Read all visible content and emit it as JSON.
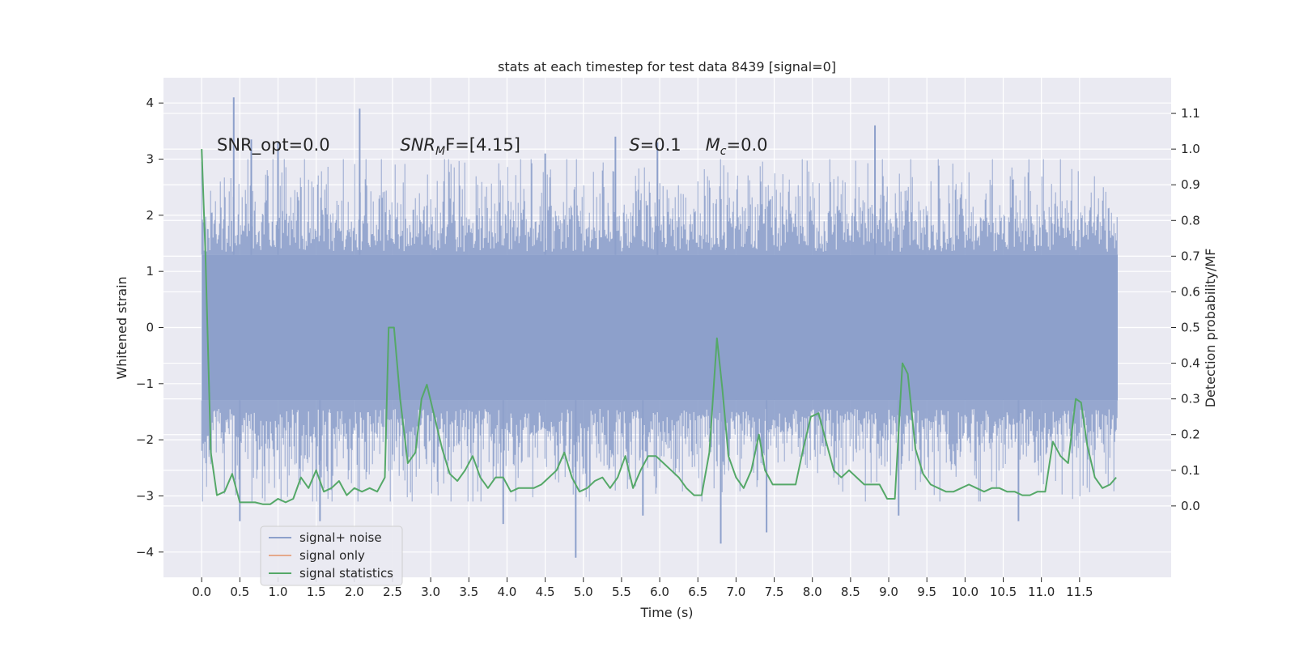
{
  "chart_data": {
    "type": "line",
    "title": "stats at each timestep for test data 8439 [signal=0]",
    "xlabel": "Time (s)",
    "ylabel_left": "Whitened strain",
    "ylabel_right": "Detection probability/MF",
    "xlim": [
      -0.5,
      12.7
    ],
    "ylim_left": [
      -4.45,
      4.45
    ],
    "ylim_right": [
      -0.2,
      1.2
    ],
    "x_ticks": [
      0.0,
      0.5,
      1.0,
      1.5,
      2.0,
      2.5,
      3.0,
      3.5,
      4.0,
      4.5,
      5.0,
      5.5,
      6.0,
      6.5,
      7.0,
      7.5,
      8.0,
      8.5,
      9.0,
      9.5,
      10.0,
      10.5,
      11.0,
      11.5
    ],
    "x_tick_labels": [
      "0.0",
      "0.5",
      "1.0",
      "1.5",
      "2.0",
      "2.5",
      "3.0",
      "3.5",
      "4.0",
      "4.5",
      "5.0",
      "5.5",
      "6.0",
      "6.5",
      "7.0",
      "7.5",
      "8.0",
      "8.5",
      "9.0",
      "9.5",
      "10.0",
      "10.5",
      "11.0",
      "11.5"
    ],
    "y_left_ticks": [
      4,
      3,
      2,
      1,
      0,
      -1,
      -2,
      -3,
      -4
    ],
    "y_left_tick_labels": [
      "4",
      "3",
      "2",
      "1",
      "0",
      "−1",
      "−2",
      "−3",
      "−4"
    ],
    "y_right_ticks": [
      1.1,
      1.0,
      0.9,
      0.8,
      0.7,
      0.6,
      0.5,
      0.4,
      0.3,
      0.2,
      0.1,
      0.0
    ],
    "y_right_tick_labels": [
      "1.1",
      "1.0",
      "0.9",
      "0.8",
      "0.7",
      "0.6",
      "0.5",
      "0.4",
      "0.3",
      "0.2",
      "0.1",
      "0.0"
    ],
    "grid": true,
    "legend_position": "lower-left",
    "series": [
      {
        "name": "signal+ noise",
        "axis": "left",
        "kind": "noise-band",
        "color": "#8da0cb",
        "x_range": [
          0.0,
          12.0
        ],
        "core_range": [
          -1.3,
          1.3
        ],
        "typical_extent": [
          -2.6,
          2.4
        ],
        "peaks": [
          {
            "x": 0.42,
            "y": 4.1
          },
          {
            "x": 0.65,
            "y": 3.35
          },
          {
            "x": 1.0,
            "y": 3.3
          },
          {
            "x": 2.07,
            "y": 3.9
          },
          {
            "x": 4.5,
            "y": 3.1
          },
          {
            "x": 5.42,
            "y": 3.4
          },
          {
            "x": 5.97,
            "y": 3.3
          },
          {
            "x": 8.82,
            "y": 3.6
          },
          {
            "x": 0.5,
            "y": -3.45
          },
          {
            "x": 1.55,
            "y": -3.45
          },
          {
            "x": 3.95,
            "y": -3.5
          },
          {
            "x": 4.9,
            "y": -4.1
          },
          {
            "x": 5.78,
            "y": -3.35
          },
          {
            "x": 6.8,
            "y": -3.85
          },
          {
            "x": 7.4,
            "y": -3.65
          },
          {
            "x": 9.13,
            "y": -3.35
          },
          {
            "x": 10.7,
            "y": -3.45
          }
        ]
      },
      {
        "name": "signal only",
        "axis": "left",
        "color": "#e5a98c",
        "x": [],
        "y": []
      },
      {
        "name": "signal statistics",
        "axis": "right",
        "color": "#55a868",
        "x": [
          0.0,
          0.05,
          0.12,
          0.2,
          0.3,
          0.4,
          0.5,
          0.6,
          0.7,
          0.8,
          0.9,
          1.0,
          1.1,
          1.2,
          1.3,
          1.4,
          1.5,
          1.6,
          1.7,
          1.8,
          1.9,
          2.0,
          2.1,
          2.2,
          2.3,
          2.4,
          2.45,
          2.52,
          2.6,
          2.7,
          2.8,
          2.88,
          2.95,
          3.05,
          3.15,
          3.25,
          3.35,
          3.45,
          3.55,
          3.65,
          3.75,
          3.85,
          3.95,
          4.05,
          4.15,
          4.25,
          4.35,
          4.45,
          4.55,
          4.65,
          4.75,
          4.85,
          4.95,
          5.05,
          5.15,
          5.25,
          5.35,
          5.45,
          5.55,
          5.65,
          5.75,
          5.85,
          5.95,
          6.05,
          6.15,
          6.25,
          6.35,
          6.45,
          6.55,
          6.65,
          6.75,
          6.82,
          6.9,
          7.0,
          7.1,
          7.2,
          7.3,
          7.38,
          7.48,
          7.58,
          7.68,
          7.78,
          7.88,
          7.98,
          8.08,
          8.18,
          8.28,
          8.38,
          8.48,
          8.58,
          8.68,
          8.78,
          8.88,
          8.98,
          9.08,
          9.18,
          9.25,
          9.35,
          9.45,
          9.55,
          9.65,
          9.75,
          9.85,
          9.95,
          10.05,
          10.15,
          10.25,
          10.35,
          10.45,
          10.55,
          10.65,
          10.75,
          10.85,
          10.95,
          11.05,
          11.15,
          11.25,
          11.35,
          11.45,
          11.52,
          11.6,
          11.7,
          11.8,
          11.9,
          11.98
        ],
        "y": [
          1.0,
          0.7,
          0.15,
          0.03,
          0.04,
          0.09,
          0.01,
          0.01,
          0.01,
          0.005,
          0.005,
          0.02,
          0.01,
          0.02,
          0.08,
          0.05,
          0.1,
          0.04,
          0.05,
          0.07,
          0.03,
          0.05,
          0.04,
          0.05,
          0.04,
          0.08,
          0.5,
          0.5,
          0.3,
          0.12,
          0.15,
          0.3,
          0.34,
          0.25,
          0.16,
          0.09,
          0.07,
          0.1,
          0.14,
          0.08,
          0.05,
          0.08,
          0.08,
          0.04,
          0.05,
          0.05,
          0.05,
          0.06,
          0.08,
          0.1,
          0.15,
          0.08,
          0.04,
          0.05,
          0.07,
          0.08,
          0.05,
          0.08,
          0.14,
          0.05,
          0.1,
          0.14,
          0.14,
          0.12,
          0.1,
          0.08,
          0.05,
          0.03,
          0.03,
          0.15,
          0.47,
          0.33,
          0.14,
          0.08,
          0.05,
          0.1,
          0.2,
          0.1,
          0.06,
          0.06,
          0.06,
          0.06,
          0.16,
          0.25,
          0.26,
          0.18,
          0.1,
          0.08,
          0.1,
          0.08,
          0.06,
          0.06,
          0.06,
          0.02,
          0.02,
          0.4,
          0.37,
          0.16,
          0.09,
          0.06,
          0.05,
          0.04,
          0.04,
          0.05,
          0.06,
          0.05,
          0.04,
          0.05,
          0.05,
          0.04,
          0.04,
          0.03,
          0.03,
          0.04,
          0.04,
          0.18,
          0.14,
          0.12,
          0.3,
          0.29,
          0.17,
          0.08,
          0.05,
          0.06,
          0.08
        ]
      }
    ],
    "annotations": [
      {
        "x": 0.2,
        "y": 3.15,
        "text": "SNR_opt=0.0",
        "style": "normal"
      },
      {
        "x": 2.6,
        "y": 3.15,
        "text": "SNR_MF=[4.15]",
        "style": "math",
        "parts": [
          "SNR",
          "M",
          "F=[4.15]"
        ]
      },
      {
        "x": 5.6,
        "y": 3.15,
        "text": "S=0.1",
        "style": "math",
        "parts": [
          "S",
          "",
          "=0.1"
        ]
      },
      {
        "x": 6.6,
        "y": 3.15,
        "text": "M_c=0.0",
        "style": "math",
        "parts": [
          "M",
          "c",
          "=0.0"
        ]
      }
    ]
  }
}
